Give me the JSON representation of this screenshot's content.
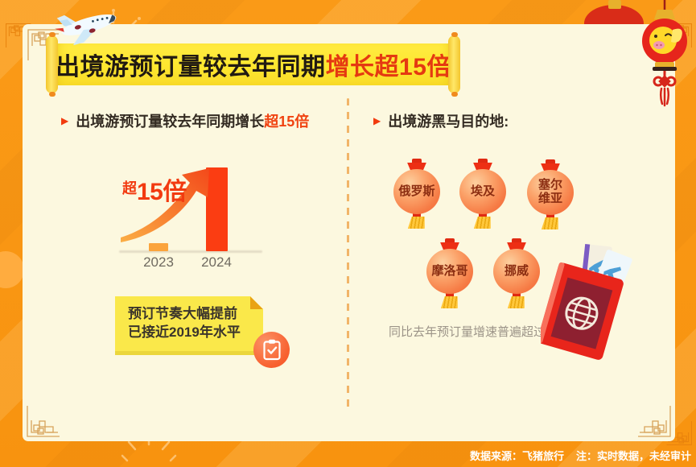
{
  "banner": {
    "text_black": "出境游预订量较去年同期",
    "text_red": "增长超15倍"
  },
  "left_section": {
    "bullet": "▶",
    "heading_black": "出境游预订量较去年同期增长",
    "heading_red": "超15倍",
    "annotation_prefix": "超",
    "annotation_value": "15倍",
    "note": {
      "line1": "预订节奏大幅提前",
      "line2": "已接近2019年水平"
    }
  },
  "right_section": {
    "bullet": "▶",
    "heading": "出境游黑马目的地:",
    "lanterns": [
      "俄罗斯",
      "埃及",
      "塞尔\n维亚",
      "摩洛哥",
      "挪威"
    ],
    "caption": "同比去年预订量增速普遍超过50倍"
  },
  "footer": {
    "source": "数据来源：飞猪旅行",
    "note": "注：实时数据，未经审计"
  },
  "chart_data": {
    "type": "bar",
    "title": "出境游预订量较去年同期增长超15倍",
    "categories": [
      "2023",
      "2024"
    ],
    "values": [
      1,
      15.5
    ],
    "annotation": "超15倍",
    "xlabel": "",
    "ylabel": "",
    "ylim": [
      0,
      15.5
    ],
    "grid": false,
    "legend": false,
    "bar_colors": [
      "#FBA43C",
      "#FB3D12"
    ]
  },
  "colors": {
    "background_orange": "#F8930F",
    "card_cream": "#FCF8DF",
    "banner_yellow": "#FEE72F",
    "accent_red": "#E53911",
    "bar_2023_orange": "#FBA43C",
    "bar_2024_red": "#FB3D12",
    "note_yellow": "#FAE84A",
    "lantern_body_orange": "#F67A44",
    "lantern_label_maroon": "#8C2E12",
    "footer_white": "#FFFFFF"
  }
}
